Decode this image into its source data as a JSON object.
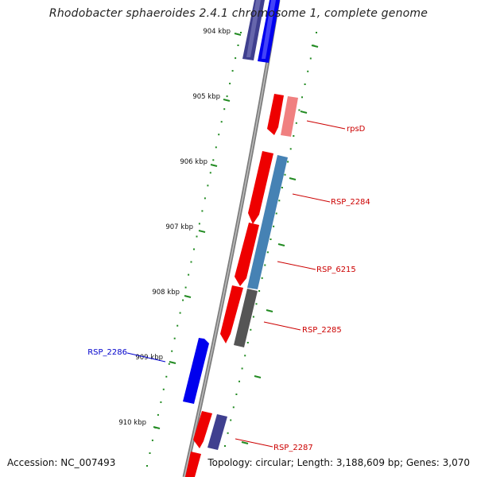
{
  "title": "Rhodobacter sphaeroides 2.4.1 chromosome 1, complete genome",
  "footer": {
    "accession": "Accession: NC_007493",
    "summary": "Topology: circular; Length: 3,188,609 bp; Genes: 3,070"
  },
  "scale": {
    "labels": [
      "904 kbp",
      "905 kbp",
      "906 kbp",
      "907 kbp",
      "908 kbp",
      "909 kbp",
      "910 kbp"
    ]
  },
  "genes": [
    {
      "name": "rpsD",
      "color": "#cc0000"
    },
    {
      "name": "RSP_2284",
      "color": "#cc0000"
    },
    {
      "name": "RSP_6215",
      "color": "#cc0000"
    },
    {
      "name": "RSP_2285",
      "color": "#cc0000"
    },
    {
      "name": "RSP_2286",
      "color": "#0000cc"
    },
    {
      "name": "RSP_2287",
      "color": "#cc0000"
    }
  ],
  "colors": {
    "tick": "#228b22",
    "forward_gene": "#ee0000",
    "reverse_gene": "#0000ee",
    "backbone": "#7d7d7d"
  }
}
